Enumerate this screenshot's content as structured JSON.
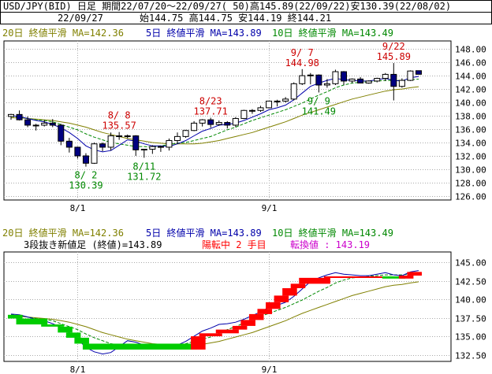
{
  "header": {
    "line1": "USD/JPY(BID) 日足 期間22/07/20～22/09/27( 50)高145.89(22/09/22)安130.39(22/08/02)",
    "date": "22/09/27",
    "ohlc": "始144.75 高144.75 安144.19 終144.21"
  },
  "legend": {
    "ma20": "20日 終値平滑 MA=142.36",
    "ma5": "5日 終値平滑 MA=143.89",
    "ma10": "10日 終値平滑 MA=143.49",
    "line_break": "3段抜き新値足 (終値)=143.89",
    "reversal": "陽転中  2 手目",
    "conversion": "転換値 : 143.19"
  },
  "colors": {
    "up": "#0000cc",
    "down": "#000080",
    "ma5": "#0000aa",
    "ma10": "#008800",
    "ma20": "#808000",
    "annotation_high": "#cc0000",
    "annotation_low": "#008800",
    "brick_up": "#ff0000",
    "brick_down": "#00cc00",
    "reversal_text": "#ff0000",
    "conversion_text": "#cc00cc"
  },
  "chart_data": [
    {
      "type": "candlestick",
      "yticks": [
        "148.00",
        "146.00",
        "144.00",
        "142.00",
        "140.00",
        "138.00",
        "136.00",
        "134.00",
        "132.00",
        "130.00",
        "128.00",
        "126.00"
      ],
      "ylim": [
        125.4,
        149.2
      ],
      "xtick_labels": [
        "8/1",
        "9/1"
      ],
      "xtick_dates": [
        "2022-08-01",
        "2022-09-01"
      ],
      "candles": [
        {
          "date": "2022-07-20",
          "o": 137.9,
          "h": 138.3,
          "l": 137.4,
          "c": 138.2
        },
        {
          "date": "2022-07-21",
          "o": 138.2,
          "h": 138.8,
          "l": 137.3,
          "c": 137.4
        },
        {
          "date": "2022-07-22",
          "o": 137.4,
          "h": 137.9,
          "l": 136.3,
          "c": 136.6
        },
        {
          "date": "2022-07-25",
          "o": 136.6,
          "h": 136.8,
          "l": 135.8,
          "c": 136.6
        },
        {
          "date": "2022-07-26",
          "o": 136.6,
          "h": 137.4,
          "l": 136.4,
          "c": 136.9
        },
        {
          "date": "2022-07-27",
          "o": 136.9,
          "h": 137.5,
          "l": 136.3,
          "c": 136.6
        },
        {
          "date": "2022-07-28",
          "o": 136.6,
          "h": 136.8,
          "l": 133.6,
          "c": 134.2
        },
        {
          "date": "2022-07-29",
          "o": 134.2,
          "h": 134.7,
          "l": 132.5,
          "c": 133.3
        },
        {
          "date": "2022-08-01",
          "o": 133.3,
          "h": 133.4,
          "l": 131.6,
          "c": 132.0
        },
        {
          "date": "2022-08-02",
          "o": 132.0,
          "h": 132.4,
          "l": 130.39,
          "c": 130.9
        },
        {
          "date": "2022-08-03",
          "o": 130.9,
          "h": 134.0,
          "l": 130.8,
          "c": 133.8
        },
        {
          "date": "2022-08-04",
          "o": 133.8,
          "h": 134.0,
          "l": 132.7,
          "c": 133.3
        },
        {
          "date": "2022-08-05",
          "o": 133.3,
          "h": 135.5,
          "l": 132.8,
          "c": 135.0
        },
        {
          "date": "2022-08-08",
          "o": 135.0,
          "h": 135.57,
          "l": 134.4,
          "c": 134.9
        },
        {
          "date": "2022-08-09",
          "o": 134.9,
          "h": 135.2,
          "l": 134.6,
          "c": 135.0
        },
        {
          "date": "2022-08-10",
          "o": 135.0,
          "h": 135.1,
          "l": 132.0,
          "c": 132.9
        },
        {
          "date": "2022-08-11",
          "o": 132.9,
          "h": 133.0,
          "l": 131.72,
          "c": 133.0
        },
        {
          "date": "2022-08-12",
          "o": 133.0,
          "h": 133.6,
          "l": 132.3,
          "c": 133.4
        },
        {
          "date": "2022-08-15",
          "o": 133.4,
          "h": 133.5,
          "l": 132.6,
          "c": 133.3
        },
        {
          "date": "2022-08-16",
          "o": 133.3,
          "h": 134.6,
          "l": 132.8,
          "c": 134.3
        },
        {
          "date": "2022-08-17",
          "o": 134.3,
          "h": 135.5,
          "l": 133.8,
          "c": 134.9
        },
        {
          "date": "2022-08-18",
          "o": 134.9,
          "h": 135.9,
          "l": 134.7,
          "c": 135.8
        },
        {
          "date": "2022-08-19",
          "o": 135.8,
          "h": 137.2,
          "l": 135.7,
          "c": 136.9
        },
        {
          "date": "2022-08-22",
          "o": 136.9,
          "h": 137.5,
          "l": 136.4,
          "c": 137.4
        },
        {
          "date": "2022-08-23",
          "o": 137.4,
          "h": 137.71,
          "l": 136.2,
          "c": 136.7
        },
        {
          "date": "2022-08-24",
          "o": 136.7,
          "h": 137.3,
          "l": 136.5,
          "c": 137.0
        },
        {
          "date": "2022-08-25",
          "o": 137.0,
          "h": 137.2,
          "l": 136.1,
          "c": 136.6
        },
        {
          "date": "2022-08-26",
          "o": 136.6,
          "h": 137.8,
          "l": 136.3,
          "c": 137.6
        },
        {
          "date": "2022-08-29",
          "o": 137.6,
          "h": 138.9,
          "l": 137.5,
          "c": 138.8
        },
        {
          "date": "2022-08-30",
          "o": 138.8,
          "h": 139.0,
          "l": 138.3,
          "c": 138.8
        },
        {
          "date": "2022-08-31",
          "o": 138.8,
          "h": 139.5,
          "l": 138.6,
          "c": 139.2
        },
        {
          "date": "2022-09-01",
          "o": 139.2,
          "h": 140.2,
          "l": 139.1,
          "c": 140.2
        },
        {
          "date": "2022-09-02",
          "o": 140.2,
          "h": 140.4,
          "l": 139.4,
          "c": 140.2
        },
        {
          "date": "2022-09-05",
          "o": 140.2,
          "h": 140.8,
          "l": 140.0,
          "c": 140.5
        },
        {
          "date": "2022-09-06",
          "o": 140.5,
          "h": 143.0,
          "l": 140.3,
          "c": 142.8
        },
        {
          "date": "2022-09-07",
          "o": 142.8,
          "h": 144.98,
          "l": 142.6,
          "c": 144.0
        },
        {
          "date": "2022-09-08",
          "o": 144.0,
          "h": 144.4,
          "l": 142.7,
          "c": 144.1
        },
        {
          "date": "2022-09-09",
          "o": 144.1,
          "h": 144.2,
          "l": 141.49,
          "c": 142.6
        },
        {
          "date": "2022-09-12",
          "o": 142.6,
          "h": 143.5,
          "l": 142.2,
          "c": 142.8
        },
        {
          "date": "2022-09-13",
          "o": 142.8,
          "h": 144.9,
          "l": 142.6,
          "c": 144.6
        },
        {
          "date": "2022-09-14",
          "o": 144.6,
          "h": 144.7,
          "l": 142.6,
          "c": 143.2
        },
        {
          "date": "2022-09-15",
          "o": 143.2,
          "h": 143.6,
          "l": 142.9,
          "c": 143.5
        },
        {
          "date": "2022-09-16",
          "o": 143.5,
          "h": 143.8,
          "l": 142.9,
          "c": 142.9
        },
        {
          "date": "2022-09-19",
          "o": 142.9,
          "h": 143.3,
          "l": 142.8,
          "c": 143.2
        },
        {
          "date": "2022-09-20",
          "o": 143.2,
          "h": 143.7,
          "l": 143.0,
          "c": 143.6
        },
        {
          "date": "2022-09-21",
          "o": 143.6,
          "h": 144.4,
          "l": 143.2,
          "c": 144.2
        },
        {
          "date": "2022-09-22",
          "o": 144.2,
          "h": 145.89,
          "l": 140.3,
          "c": 142.4
        },
        {
          "date": "2022-09-23",
          "o": 142.4,
          "h": 143.6,
          "l": 142.2,
          "c": 143.3
        },
        {
          "date": "2022-09-26",
          "o": 143.3,
          "h": 144.8,
          "l": 143.2,
          "c": 144.7
        },
        {
          "date": "2022-09-27",
          "o": 144.75,
          "h": 144.75,
          "l": 144.19,
          "c": 144.21
        }
      ],
      "annotations": [
        {
          "text": "8/ 2",
          "value": "130.39",
          "date": "2022-08-02",
          "kind": "low"
        },
        {
          "text": "8/ 8",
          "value": "135.57",
          "date": "2022-08-08",
          "kind": "high"
        },
        {
          "text": "8/11",
          "value": "131.72",
          "date": "2022-08-11",
          "kind": "low"
        },
        {
          "text": "8/23",
          "value": "137.71",
          "date": "2022-08-23",
          "kind": "high"
        },
        {
          "text": "9/ 7",
          "value": "144.98",
          "date": "2022-09-07",
          "kind": "high"
        },
        {
          "text": "9/ 9",
          "value": "141.49",
          "date": "2022-09-09",
          "kind": "low"
        },
        {
          "text": "9/22",
          "value": "145.89",
          "date": "2022-09-22",
          "kind": "high"
        }
      ],
      "ma5_values": [
        138.0,
        137.9,
        137.6,
        137.3,
        137.1,
        136.7,
        136.2,
        135.5,
        134.6,
        133.5,
        132.9,
        132.6,
        132.8,
        133.6,
        134.4,
        134.2,
        133.8,
        133.5,
        133.5,
        133.4,
        133.8,
        134.3,
        135.0,
        135.7,
        136.1,
        136.6,
        136.7,
        136.9,
        137.3,
        137.8,
        138.3,
        138.9,
        139.2,
        139.6,
        140.4,
        141.4,
        142.4,
        142.9,
        143.3,
        143.6,
        143.4,
        143.3,
        143.2,
        143.2,
        143.4,
        143.6,
        143.3,
        143.2,
        143.7,
        143.89
      ],
      "ma10_values": [
        137.9,
        137.8,
        137.6,
        137.4,
        137.3,
        137.1,
        136.7,
        136.3,
        135.9,
        135.3,
        134.8,
        134.4,
        134.0,
        133.8,
        133.6,
        133.4,
        133.4,
        133.3,
        133.5,
        133.7,
        133.9,
        134.0,
        134.3,
        134.6,
        134.9,
        135.4,
        135.9,
        136.3,
        136.8,
        137.3,
        137.7,
        138.1,
        138.5,
        138.9,
        139.4,
        139.9,
        140.5,
        141.1,
        141.6,
        142.2,
        142.6,
        142.9,
        143.0,
        143.1,
        143.2,
        143.3,
        143.3,
        143.3,
        143.4,
        143.49
      ],
      "ma20_values": [
        137.7,
        137.7,
        137.6,
        137.5,
        137.4,
        137.3,
        137.1,
        136.9,
        136.6,
        136.3,
        135.9,
        135.5,
        135.2,
        134.9,
        134.6,
        134.4,
        134.2,
        134.0,
        133.9,
        133.8,
        133.8,
        133.8,
        133.8,
        133.9,
        134.1,
        134.3,
        134.6,
        134.9,
        135.2,
        135.5,
        135.9,
        136.3,
        136.7,
        137.1,
        137.6,
        138.1,
        138.5,
        138.9,
        139.3,
        139.7,
        140.1,
        140.5,
        140.8,
        141.1,
        141.4,
        141.7,
        141.9,
        142.0,
        142.2,
        142.36
      ]
    },
    {
      "type": "line_break_three",
      "yticks": [
        "145.00",
        "142.50",
        "140.00",
        "137.50",
        "135.00",
        "132.50"
      ],
      "ylim": [
        131.6,
        146.4
      ],
      "xtick_labels": [
        "8/1",
        "9/1"
      ],
      "xtick_dates": [
        "2022-08-01",
        "2022-09-01"
      ],
      "bricks": [
        {
          "from": "2022-07-20",
          "to": "2022-07-21",
          "low": 137.4,
          "high": 137.9,
          "dir": "down"
        },
        {
          "from": "2022-07-21",
          "to": "2022-07-26",
          "low": 136.6,
          "high": 137.4,
          "dir": "down"
        },
        {
          "from": "2022-07-26",
          "to": "2022-07-28",
          "low": 136.3,
          "high": 136.6,
          "dir": "down"
        },
        {
          "from": "2022-07-28",
          "to": "2022-07-29",
          "low": 135.5,
          "high": 136.3,
          "dir": "down"
        },
        {
          "from": "2022-07-29",
          "to": "2022-08-01",
          "low": 134.8,
          "high": 135.5,
          "dir": "down"
        },
        {
          "from": "2022-08-01",
          "to": "2022-08-02",
          "low": 134.0,
          "high": 134.8,
          "dir": "down"
        },
        {
          "from": "2022-08-02",
          "to": "2022-08-19",
          "low": 133.2,
          "high": 134.0,
          "dir": "down"
        },
        {
          "from": "2022-08-19",
          "to": "2022-08-22",
          "low": 133.2,
          "high": 135.0,
          "dir": "up"
        },
        {
          "from": "2022-08-22",
          "to": "2022-08-24",
          "low": 135.0,
          "high": 135.4,
          "dir": "up"
        },
        {
          "from": "2022-08-24",
          "to": "2022-08-26",
          "low": 135.4,
          "high": 135.9,
          "dir": "up"
        },
        {
          "from": "2022-08-26",
          "to": "2022-08-29",
          "low": 135.9,
          "high": 136.4,
          "dir": "up"
        },
        {
          "from": "2022-08-29",
          "to": "2022-08-30",
          "low": 136.4,
          "high": 137.2,
          "dir": "up"
        },
        {
          "from": "2022-08-30",
          "to": "2022-08-31",
          "low": 137.2,
          "high": 138.0,
          "dir": "up"
        },
        {
          "from": "2022-08-31",
          "to": "2022-09-01",
          "low": 138.0,
          "high": 138.7,
          "dir": "up"
        },
        {
          "from": "2022-09-01",
          "to": "2022-09-02",
          "low": 138.7,
          "high": 139.6,
          "dir": "up"
        },
        {
          "from": "2022-09-02",
          "to": "2022-09-05",
          "low": 139.6,
          "high": 140.5,
          "dir": "up"
        },
        {
          "from": "2022-09-05",
          "to": "2022-09-06",
          "low": 140.5,
          "high": 141.5,
          "dir": "up"
        },
        {
          "from": "2022-09-06",
          "to": "2022-09-07",
          "low": 141.5,
          "high": 142.1,
          "dir": "up"
        },
        {
          "from": "2022-09-07",
          "to": "2022-09-12",
          "low": 142.1,
          "high": 142.9,
          "dir": "up"
        },
        {
          "from": "2022-09-12",
          "to": "2022-09-21",
          "low": 142.9,
          "high": 143.1,
          "dir": "up"
        },
        {
          "from": "2022-09-21",
          "to": "2022-09-23",
          "low": 142.8,
          "high": 143.1,
          "dir": "down"
        },
        {
          "from": "2022-09-23",
          "to": "2022-09-26",
          "low": 142.8,
          "high": 143.2,
          "dir": "up"
        },
        {
          "from": "2022-09-26",
          "to": "2022-09-27",
          "low": 143.2,
          "high": 143.7,
          "dir": "up"
        }
      ]
    }
  ]
}
